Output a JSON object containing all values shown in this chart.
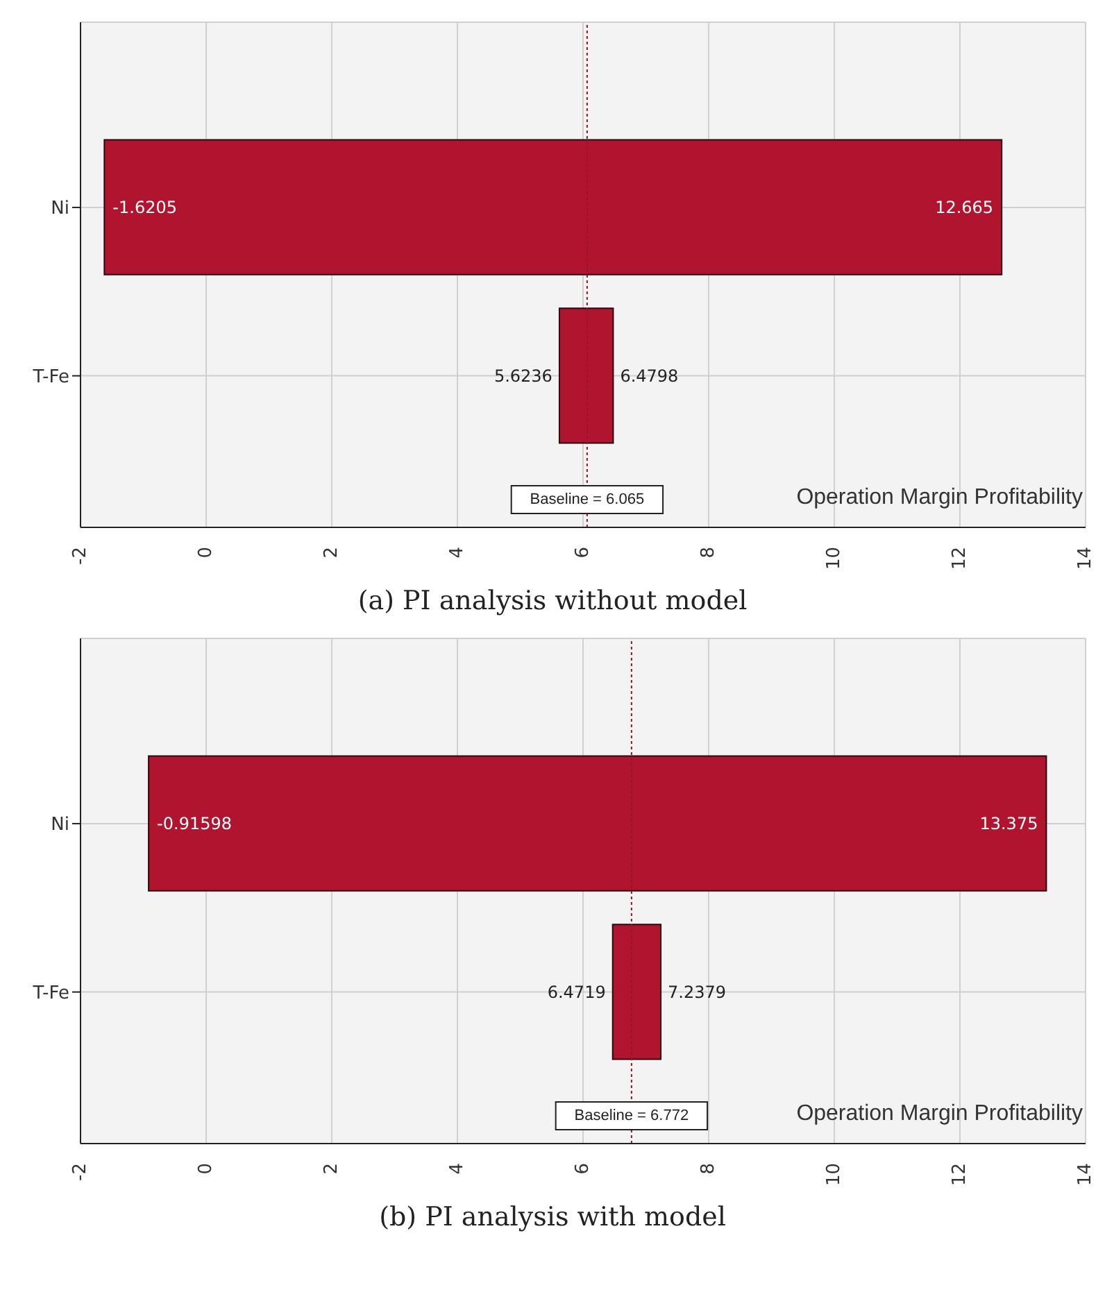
{
  "chart_data": [
    {
      "type": "bar",
      "orientation": "horizontal",
      "title": "(a)    PI analysis without model",
      "categories": [
        "Ni",
        "T-Fe"
      ],
      "series": [
        {
          "color": "#b0142e",
          "values": [
            14.2855,
            0.8562
          ],
          "base": [
            -1.6205,
            5.6236
          ]
        }
      ],
      "xlim": [
        -2,
        14
      ],
      "xticks": [
        -2,
        0,
        2,
        4,
        6,
        8,
        10,
        12,
        14
      ],
      "grid": true,
      "ref_lines": [
        {
          "axis": "x",
          "value": 6.065,
          "label": "Baseline = 6.065",
          "color": "#8b1a2a",
          "line_style": "dotted"
        }
      ],
      "annotations": [
        {
          "text": "-1.6205",
          "x": -1.6205,
          "y": "Ni"
        },
        {
          "text": "12.665",
          "x": 12.665,
          "y": "Ni"
        },
        {
          "text": "5.6236",
          "x": 5.6236,
          "y": "T-Fe"
        },
        {
          "text": "6.4798",
          "x": 6.4798,
          "y": "T-Fe"
        },
        "Operation Margin Profitability"
      ]
    },
    {
      "type": "bar",
      "orientation": "horizontal",
      "title": "(b)    PI analysis with model",
      "categories": [
        "Ni",
        "T-Fe"
      ],
      "series": [
        {
          "color": "#b0142e",
          "values": [
            14.29098,
            0.766
          ],
          "base": [
            -0.91598,
            6.4719
          ]
        }
      ],
      "xlim": [
        -2,
        14
      ],
      "xticks": [
        -2,
        0,
        2,
        4,
        6,
        8,
        10,
        12,
        14
      ],
      "grid": true,
      "ref_lines": [
        {
          "axis": "x",
          "value": 6.772,
          "label": "Baseline = 6.772",
          "color": "#8b1a2a",
          "line_style": "dotted"
        }
      ],
      "annotations": [
        {
          "text": "-0.91598",
          "x": -0.91598,
          "y": "Ni"
        },
        {
          "text": "13.375",
          "x": 13.375,
          "y": "Ni"
        },
        {
          "text": "6.4719",
          "x": 6.4719,
          "y": "T-Fe"
        },
        {
          "text": "7.2379",
          "x": 7.2379,
          "y": "T-Fe"
        },
        "Operation Margin Profitability"
      ]
    }
  ]
}
